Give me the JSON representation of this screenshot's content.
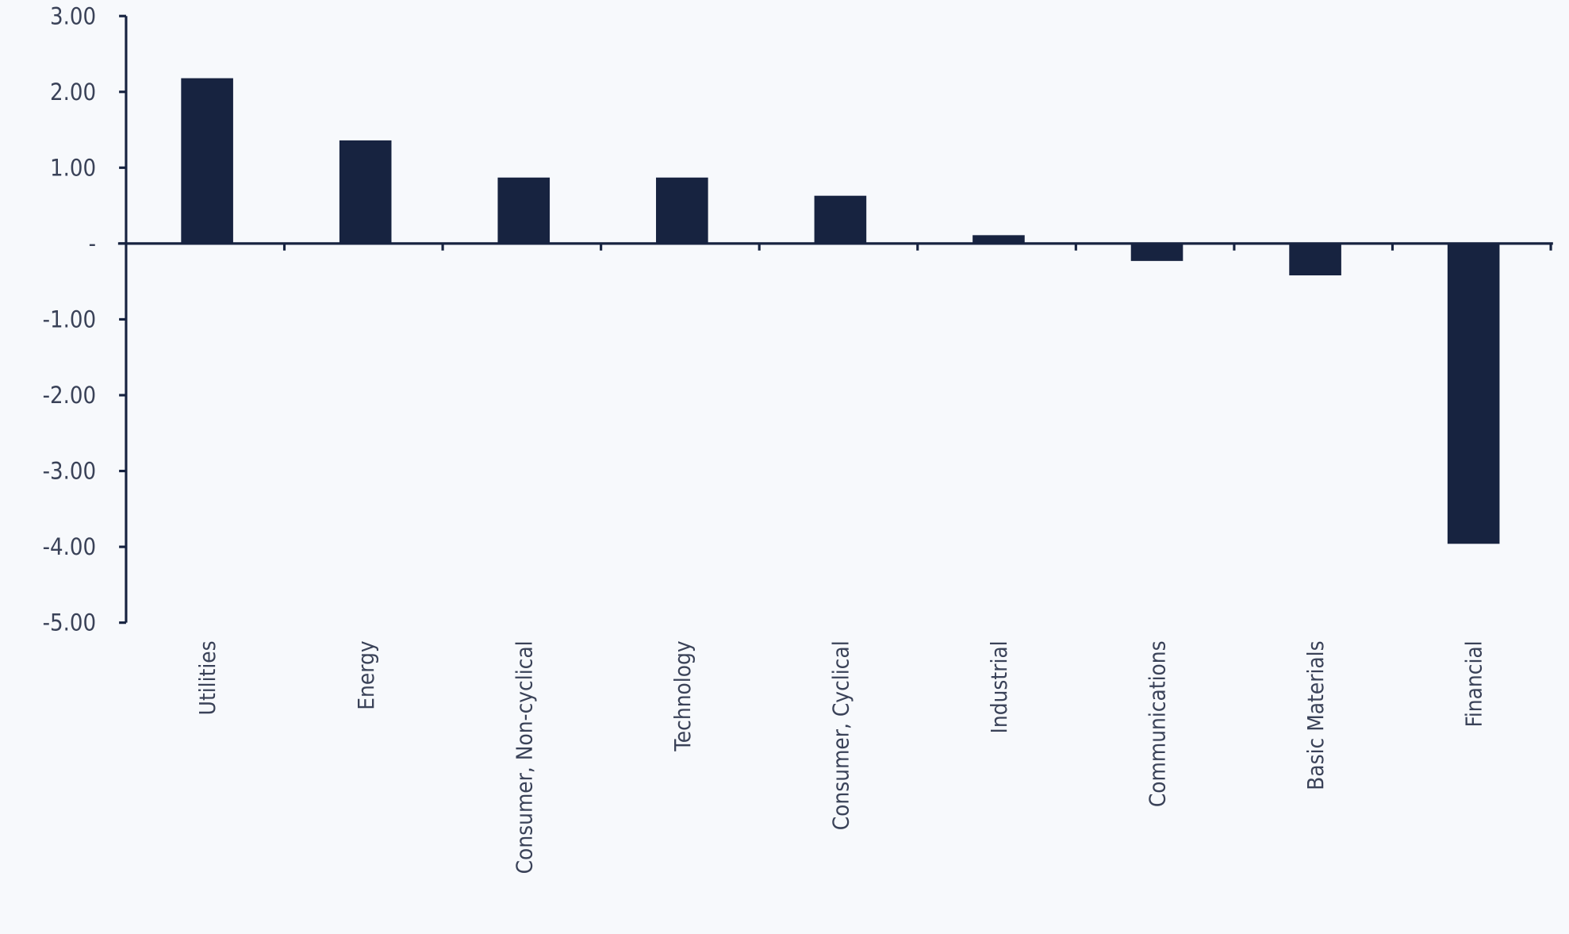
{
  "chart_data": {
    "type": "bar",
    "title": "",
    "xlabel": "",
    "ylabel": "",
    "categories": [
      "Utilities",
      "Energy",
      "Consumer, Non-cyclical",
      "Technology",
      "Consumer, Cyclical",
      "Industrial",
      "Communications",
      "Basic Materials",
      "Financial"
    ],
    "values": [
      2.18,
      1.36,
      0.87,
      0.87,
      0.63,
      0.11,
      -0.23,
      -0.42,
      -3.96
    ],
    "ylim": [
      -5,
      3
    ],
    "yticks": [
      3,
      2,
      1,
      0,
      -1,
      -2,
      -3,
      -4,
      -5
    ],
    "ytick_labels": [
      "3.00",
      "2.00",
      "1.00",
      "-",
      "-1.00",
      "-2.00",
      "-3.00",
      "-4.00",
      "-5.00"
    ],
    "grid": false,
    "bar_color": "#172340"
  }
}
